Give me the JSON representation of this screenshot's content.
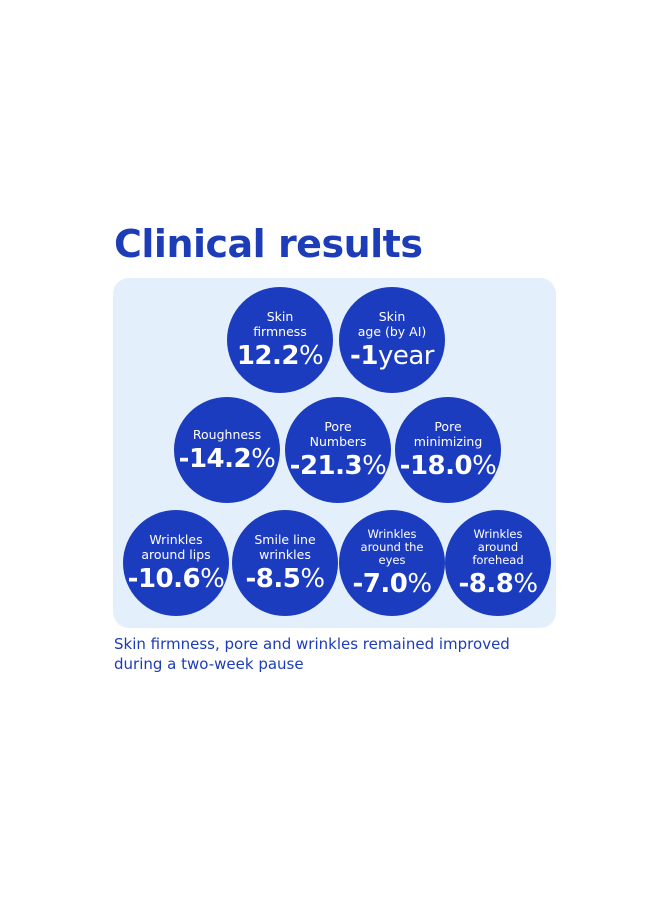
{
  "title": "Clinical results",
  "rows": [
    [
      {
        "label": [
          "Skin",
          "firmness"
        ],
        "number": "12.2",
        "unit": "%"
      },
      {
        "label": [
          "Skin",
          "age (by AI)"
        ],
        "number": "-1",
        "unit": "year"
      }
    ],
    [
      {
        "label": [
          "Roughness"
        ],
        "number": "-14.2",
        "unit": "%"
      },
      {
        "label": [
          "Pore",
          "Numbers"
        ],
        "number": "-21.3",
        "unit": "%"
      },
      {
        "label": [
          "Pore",
          "minimizing"
        ],
        "number": "-18.0",
        "unit": "%"
      }
    ],
    [
      {
        "label": [
          "Wrinkles",
          "around lips"
        ],
        "number": "-10.6",
        "unit": "%"
      },
      {
        "label": [
          "Smile line",
          "wrinkles"
        ],
        "number": "-8.5",
        "unit": "%"
      },
      {
        "label": [
          "Wrinkles",
          "around the",
          "eyes"
        ],
        "number": "-7.0",
        "unit": "%"
      },
      {
        "label": [
          "Wrinkles",
          "around",
          "forehead"
        ],
        "number": "-8.8",
        "unit": "%"
      }
    ]
  ],
  "footer": [
    "Skin firmness, pore and wrinkles remained improved",
    "during a two-week pause"
  ]
}
